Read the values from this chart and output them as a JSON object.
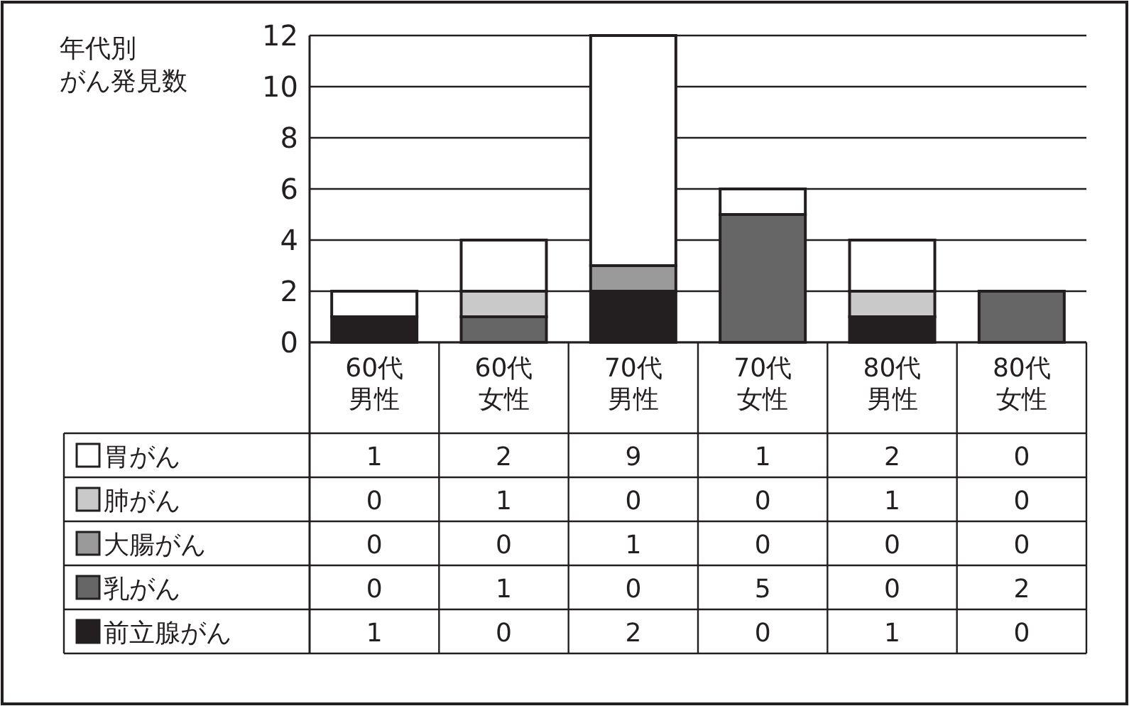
{
  "chart_data": {
    "type": "bar",
    "title": "年代別",
    "subtitle": "がん発見数",
    "stacked": true,
    "categories": [
      "60代男性",
      "60代女性",
      "70代男性",
      "70代女性",
      "80代男性",
      "80代女性"
    ],
    "series": [
      {
        "name": "前立腺がん",
        "color": "#231f20",
        "values": [
          1,
          0,
          2,
          0,
          1,
          0
        ]
      },
      {
        "name": "乳がん",
        "color": "#666666",
        "values": [
          0,
          1,
          0,
          5,
          0,
          2
        ]
      },
      {
        "name": "大腸がん",
        "color": "#9a9a9a",
        "values": [
          0,
          0,
          1,
          0,
          0,
          0
        ]
      },
      {
        "name": "肺がん",
        "color": "#c9c9c9",
        "values": [
          0,
          1,
          0,
          0,
          1,
          0
        ]
      },
      {
        "name": "胃がん",
        "color": "#ffffff",
        "values": [
          1,
          2,
          9,
          1,
          2,
          0
        ]
      }
    ],
    "ylim": [
      0,
      12
    ],
    "yticks": [
      0,
      2,
      4,
      6,
      8,
      10,
      12
    ],
    "grid": "y",
    "legend": "bottom",
    "data_labels": true
  }
}
